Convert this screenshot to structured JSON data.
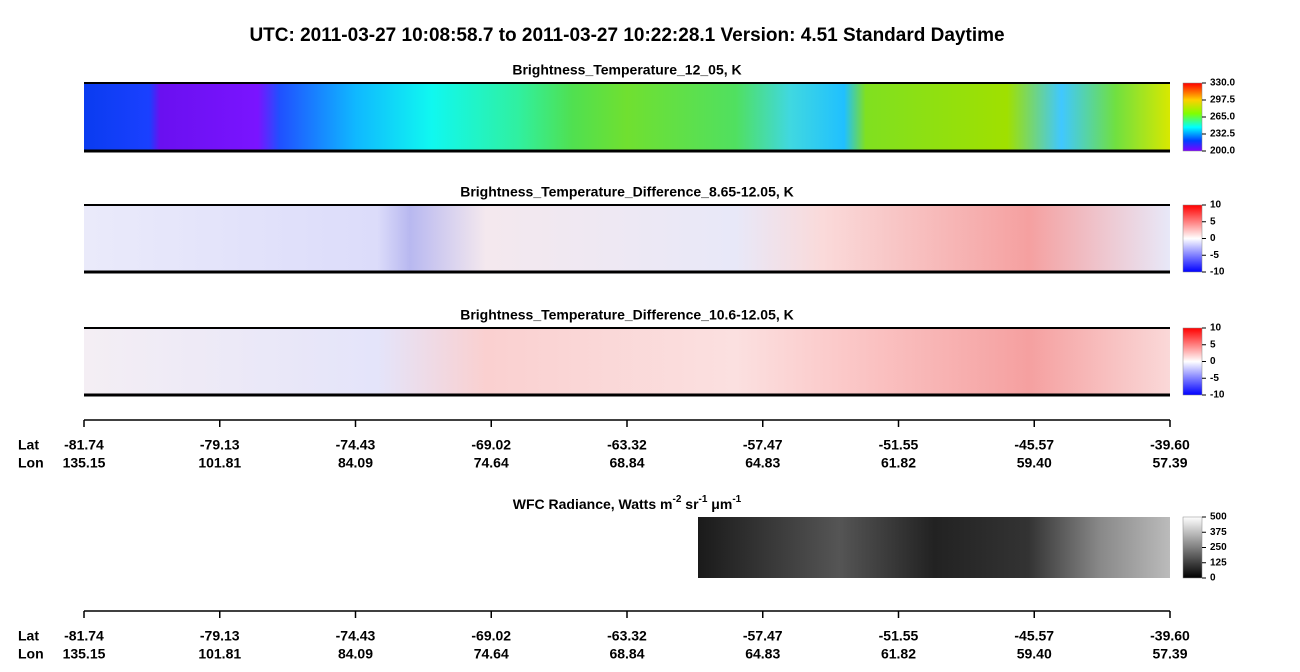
{
  "header": {
    "title": "UTC:  2011-03-27   10:08:58.7  to  2011-03-27   10:22:28.1    Version: 4.51  Standard Daytime"
  },
  "panels": [
    {
      "title": "Brightness_Temperature_12_05, K",
      "colorbar": [
        "330.0",
        "297.5",
        "265.0",
        "232.5",
        "200.0"
      ]
    },
    {
      "title": "Brightness_Temperature_Difference_8.65-12.05, K",
      "colorbar": [
        "10",
        "5",
        "0",
        "-5",
        "-10"
      ]
    },
    {
      "title": "Brightness_Temperature_Difference_10.6-12.05, K",
      "colorbar": [
        "10",
        "5",
        "0",
        "-5",
        "-10"
      ]
    },
    {
      "title_parts": [
        "WFC Radiance, Watts m",
        "-2",
        " sr",
        "-1",
        " μm",
        "-1"
      ],
      "colorbar": [
        "500",
        "375",
        "250",
        "125",
        "0"
      ]
    }
  ],
  "axis": {
    "lat_label": "Lat",
    "lon_label": "Lon",
    "lat": [
      "-81.74",
      "-79.13",
      "-74.43",
      "-69.02",
      "-63.32",
      "-57.47",
      "-51.55",
      "-45.57",
      "-39.60"
    ],
    "lon": [
      "135.15",
      "101.81",
      "84.09",
      "74.64",
      "68.84",
      "64.83",
      "61.82",
      "59.40",
      "57.39"
    ]
  }
}
